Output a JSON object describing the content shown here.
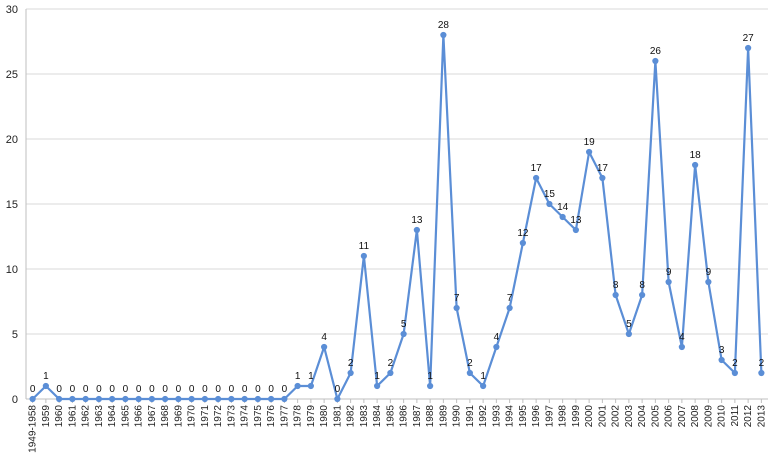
{
  "chart_data": {
    "type": "line",
    "title": "",
    "xlabel": "",
    "ylabel": "",
    "ylim": [
      0,
      30
    ],
    "yticks": [
      0,
      5,
      10,
      15,
      20,
      25,
      30
    ],
    "grid": true,
    "legend": "none",
    "line_color": "#5b8ed6",
    "categories": [
      "1949-1958",
      "1959",
      "1960",
      "1961",
      "1962",
      "1963",
      "1964",
      "1965",
      "1966",
      "1967",
      "1968",
      "1969",
      "1970",
      "1971",
      "1972",
      "1973",
      "1974",
      "1975",
      "1976",
      "1977",
      "1978",
      "1979",
      "1980",
      "1981",
      "1982",
      "1983",
      "1984",
      "1985",
      "1986",
      "1987",
      "1988",
      "1989",
      "1990",
      "1991",
      "1992",
      "1993",
      "1994",
      "1995",
      "1996",
      "1997",
      "1998",
      "1999",
      "2000",
      "2001",
      "2002",
      "2003",
      "2004",
      "2005",
      "2006",
      "2007",
      "2008",
      "2009",
      "2010",
      "2011",
      "2012",
      "2013"
    ],
    "values": [
      0,
      1,
      0,
      0,
      0,
      0,
      0,
      0,
      0,
      0,
      0,
      0,
      0,
      0,
      0,
      0,
      0,
      0,
      0,
      0,
      1,
      1,
      4,
      0,
      2,
      11,
      1,
      2,
      5,
      13,
      1,
      28,
      7,
      2,
      1,
      4,
      7,
      12,
      17,
      15,
      14,
      13,
      19,
      17,
      8,
      5,
      8,
      26,
      9,
      4,
      18,
      9,
      3,
      2,
      27,
      2
    ]
  }
}
